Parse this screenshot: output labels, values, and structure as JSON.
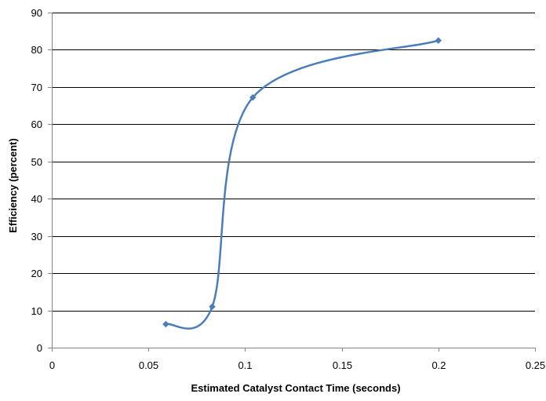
{
  "chart_data": {
    "type": "scatter",
    "title": "",
    "xlabel": "Estimated Catalyst Contact Time (seconds)",
    "ylabel": "Efficiency (percent)",
    "xlim": [
      0,
      0.25
    ],
    "ylim": [
      0,
      90
    ],
    "x_ticks": [
      0,
      0.05,
      0.1,
      0.15,
      0.2,
      0.25
    ],
    "x_tick_labels": [
      "0",
      "0.05",
      "0.1",
      "0.15",
      "0.2",
      "0.25"
    ],
    "y_ticks": [
      0,
      10,
      20,
      30,
      40,
      50,
      60,
      70,
      80,
      90
    ],
    "y_tick_labels": [
      "0",
      "10",
      "20",
      "30",
      "40",
      "50",
      "60",
      "70",
      "80",
      "90"
    ],
    "grid": "horizontal",
    "line_style": "smoothed",
    "marker": "diamond",
    "legend": "none",
    "series": [
      {
        "x": [
          0.059,
          0.083,
          0.104,
          0.2
        ],
        "y": [
          6.3,
          11,
          67.2,
          82.5
        ]
      }
    ],
    "colors": {
      "series": "#4A7EBB",
      "grid": "#000000",
      "axis": "#868686"
    }
  }
}
